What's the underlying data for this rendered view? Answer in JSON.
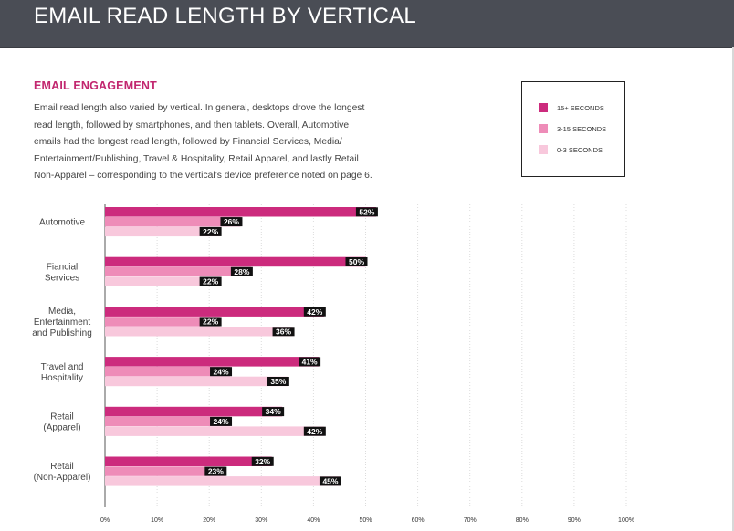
{
  "header": {
    "title": "EMAIL READ LENGTH BY VERTICAL"
  },
  "section": {
    "title": "EMAIL ENGAGEMENT",
    "intro": "Email read length also varied by vertical. In general, desktops drove the longest read length, followed by smartphones, and then tablets. Overall, Automotive emails had the longest read length, followed by Financial Services, Media/ Entertainment/Publishing, Travel & Hospitality, Retail Apparel, and lastly Retail Non-Apparel – corresponding to the vertical’s device preference noted on page 6."
  },
  "colors": {
    "series_15plus": "#cc2b7d",
    "series_3_15": "#ee8cb8",
    "series_0_3": "#f8c8dc",
    "label_bg": "#111111",
    "label_text": "#ffffff",
    "grid": "#dcdcdc",
    "axis": "#555555"
  },
  "chart_data": {
    "type": "bar",
    "orientation": "horizontal",
    "categories": [
      [
        "Automotive"
      ],
      [
        "Fiancial",
        "Services"
      ],
      [
        "Media,",
        "Entertainment",
        "and Publishing"
      ],
      [
        "Travel and",
        "Hospitality"
      ],
      [
        "Retail",
        "(Apparel)"
      ],
      [
        "Retail",
        "(Non-Apparel)"
      ]
    ],
    "series": [
      {
        "name": "15+ SECONDS",
        "values": [
          52,
          50,
          42,
          41,
          34,
          32
        ],
        "labels": [
          "52%",
          "50%",
          "42%",
          "41%",
          "34%",
          "32%"
        ]
      },
      {
        "name": "3-15 SECONDS",
        "values": [
          26,
          28,
          22,
          24,
          24,
          23
        ],
        "labels": [
          "26%",
          "28%",
          "22%",
          "24%",
          "24%",
          "23%"
        ]
      },
      {
        "name": "0-3 SECONDS",
        "values": [
          22,
          22,
          36,
          35,
          42,
          45
        ],
        "labels": [
          "22%",
          "22%",
          "36%",
          "35%",
          "42%",
          "45%"
        ]
      }
    ],
    "xlim": [
      0,
      100
    ],
    "ticks": [
      "0%",
      "10%",
      "20%",
      "30%",
      "40%",
      "50%",
      "60%",
      "70%",
      "80%",
      "90%",
      "100%"
    ],
    "tick_values": [
      0,
      10,
      20,
      30,
      40,
      50,
      60,
      70,
      80,
      90,
      100
    ],
    "grid": true,
    "legend": "top-right"
  }
}
